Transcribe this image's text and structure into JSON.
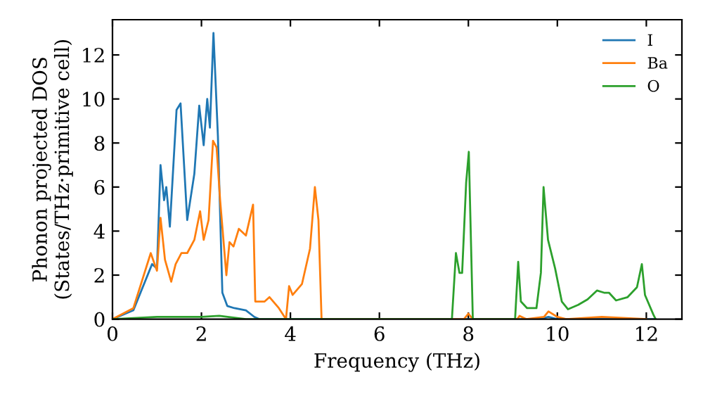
{
  "chart_data": {
    "type": "line",
    "xlabel": "Frequency (THz)",
    "ylabel": "Phonon projected DOS\n(States/THz·primitive cell)",
    "xlim": [
      0,
      12.8
    ],
    "ylim": [
      0,
      13.6
    ],
    "xticks": [
      0,
      2,
      4,
      6,
      8,
      10,
      12
    ],
    "yticks": [
      0,
      2,
      4,
      6,
      8,
      10,
      12
    ],
    "legend": "top right",
    "grid": false,
    "series": [
      {
        "name": "I",
        "color": "#1f77b4",
        "x": [
          0,
          0.47,
          0.89,
          1.0,
          1.08,
          1.16,
          1.21,
          1.29,
          1.44,
          1.53,
          1.68,
          1.84,
          1.95,
          2.05,
          2.13,
          2.19,
          2.27,
          2.37,
          2.47,
          2.58,
          2.74,
          3.0,
          3.19,
          3.3,
          9.6,
          9.8,
          10.0,
          12.2
        ],
        "values": [
          0,
          0.4,
          2.5,
          2.3,
          7.0,
          5.4,
          6.0,
          4.2,
          9.5,
          9.8,
          4.5,
          6.6,
          9.7,
          7.9,
          10.0,
          8.7,
          13.0,
          8.3,
          1.2,
          0.6,
          0.5,
          0.4,
          0.1,
          0,
          0,
          0.1,
          0,
          0
        ]
      },
      {
        "name": "Ba",
        "color": "#ff7f0e",
        "x": [
          0,
          0.47,
          0.86,
          1.0,
          1.08,
          1.18,
          1.32,
          1.42,
          1.55,
          1.68,
          1.84,
          1.97,
          2.05,
          2.16,
          2.26,
          2.34,
          2.42,
          2.56,
          2.63,
          2.72,
          2.84,
          3.0,
          3.16,
          3.21,
          3.42,
          3.53,
          3.74,
          3.9,
          3.97,
          4.05,
          4.26,
          4.44,
          4.55,
          4.63,
          4.7,
          7.9,
          8.0,
          8.1,
          9.1,
          9.15,
          9.3,
          9.7,
          9.8,
          10.0,
          10.2,
          11.0,
          12.0
        ],
        "values": [
          0,
          0.5,
          3.0,
          2.2,
          4.6,
          2.7,
          1.7,
          2.5,
          3.0,
          3.0,
          3.6,
          4.9,
          3.6,
          4.5,
          8.1,
          7.8,
          5.4,
          2.0,
          3.5,
          3.3,
          4.1,
          3.8,
          5.2,
          0.8,
          0.8,
          1.0,
          0.5,
          0,
          1.5,
          1.1,
          1.6,
          3.2,
          6.0,
          4.5,
          0,
          0,
          0.25,
          0,
          0,
          0.15,
          0,
          0.1,
          0.35,
          0.1,
          0,
          0.1,
          0
        ]
      },
      {
        "name": "O",
        "color": "#2ca02c",
        "x": [
          0,
          1.0,
          2.0,
          2.4,
          3.0,
          7.63,
          7.72,
          7.8,
          7.86,
          7.95,
          8.01,
          8.1,
          9.05,
          9.12,
          9.18,
          9.32,
          9.53,
          9.63,
          9.69,
          9.79,
          9.95,
          10.1,
          10.24,
          10.47,
          10.68,
          10.89,
          11.05,
          11.16,
          11.32,
          11.58,
          11.79,
          11.9,
          11.97,
          12.16,
          12.21
        ],
        "values": [
          0,
          0.1,
          0.1,
          0.15,
          0,
          0,
          3.0,
          2.1,
          2.1,
          6.2,
          7.6,
          0,
          0,
          2.6,
          0.8,
          0.5,
          0.5,
          2.1,
          6.0,
          3.6,
          2.3,
          0.8,
          0.45,
          0.65,
          0.9,
          1.3,
          1.2,
          1.2,
          0.85,
          1.0,
          1.45,
          2.5,
          1.1,
          0.2,
          0
        ]
      }
    ]
  }
}
